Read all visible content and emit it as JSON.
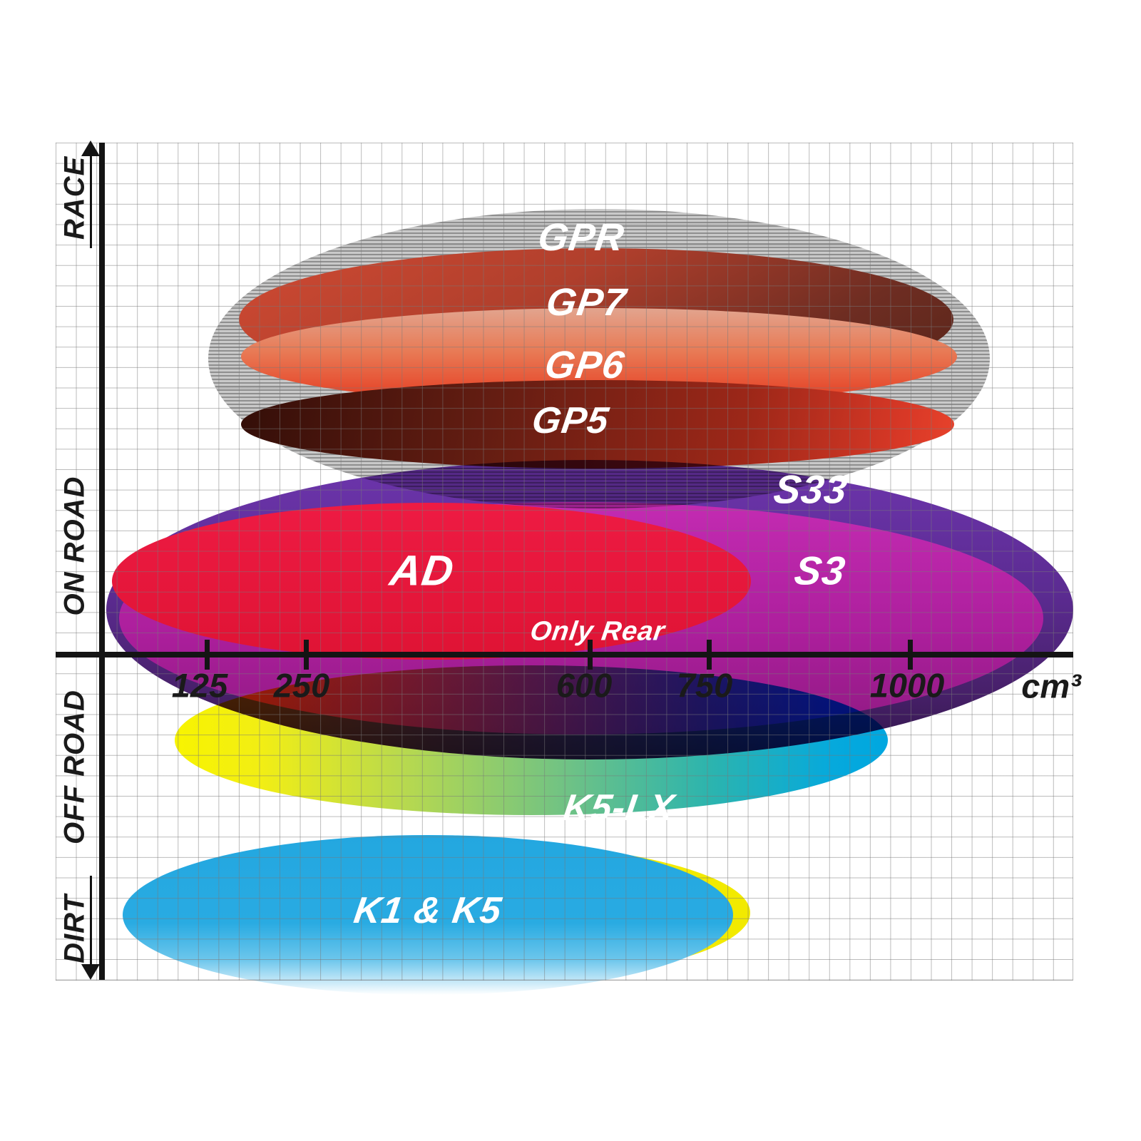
{
  "chart_data": {
    "type": "area",
    "description": "Brake pad compound application map: overlapping ellipses place each compound by engine displacement (cm3) and riding style band",
    "x_axis": {
      "unit": "cm³",
      "ticks": [
        "125",
        "250",
        "600",
        "750",
        "1000"
      ]
    },
    "y_axis": {
      "bands": [
        {
          "label": "RACE",
          "arrow": "up"
        },
        {
          "label": "ON ROAD"
        },
        {
          "label": "OFF ROAD"
        },
        {
          "label": "DIRT",
          "arrow": "down"
        }
      ]
    },
    "regions": [
      {
        "label": "GPR",
        "band": "race",
        "cc_range": [
          125,
          1100
        ],
        "color": "#9a9a9a",
        "style": "hatched-grey"
      },
      {
        "label": "GP7",
        "band": "race",
        "cc_range": [
          150,
          1050
        ],
        "color": "#a83a28"
      },
      {
        "label": "GP6",
        "band": "race",
        "cc_range": [
          150,
          1050
        ],
        "color": "#e8492f"
      },
      {
        "label": "GP5",
        "band": "race",
        "cc_range": [
          150,
          1050
        ],
        "color": "#7a2014"
      },
      {
        "label": "S33",
        "band": "on-road",
        "cc_range": [
          50,
          1200
        ],
        "color": "#5b2b91"
      },
      {
        "label": "S3",
        "band": "on-road",
        "cc_range": [
          50,
          1150
        ],
        "color": "#ad1f9d"
      },
      {
        "label": "AD",
        "band": "on-road",
        "cc_range": [
          50,
          800
        ],
        "color": "#e5173c",
        "annotation": "Only Rear"
      },
      {
        "label": "K5-LX",
        "band": "off-road",
        "cc_range": [
          85,
          975
        ],
        "color": "#6fc285",
        "gradient": [
          "#f8f400",
          "#00a7e0"
        ]
      },
      {
        "label": "K1 & K5",
        "band": "dirt",
        "cc_range": [
          50,
          780
        ],
        "color": "#29abe2",
        "outline": "#f2ea00"
      }
    ]
  }
}
